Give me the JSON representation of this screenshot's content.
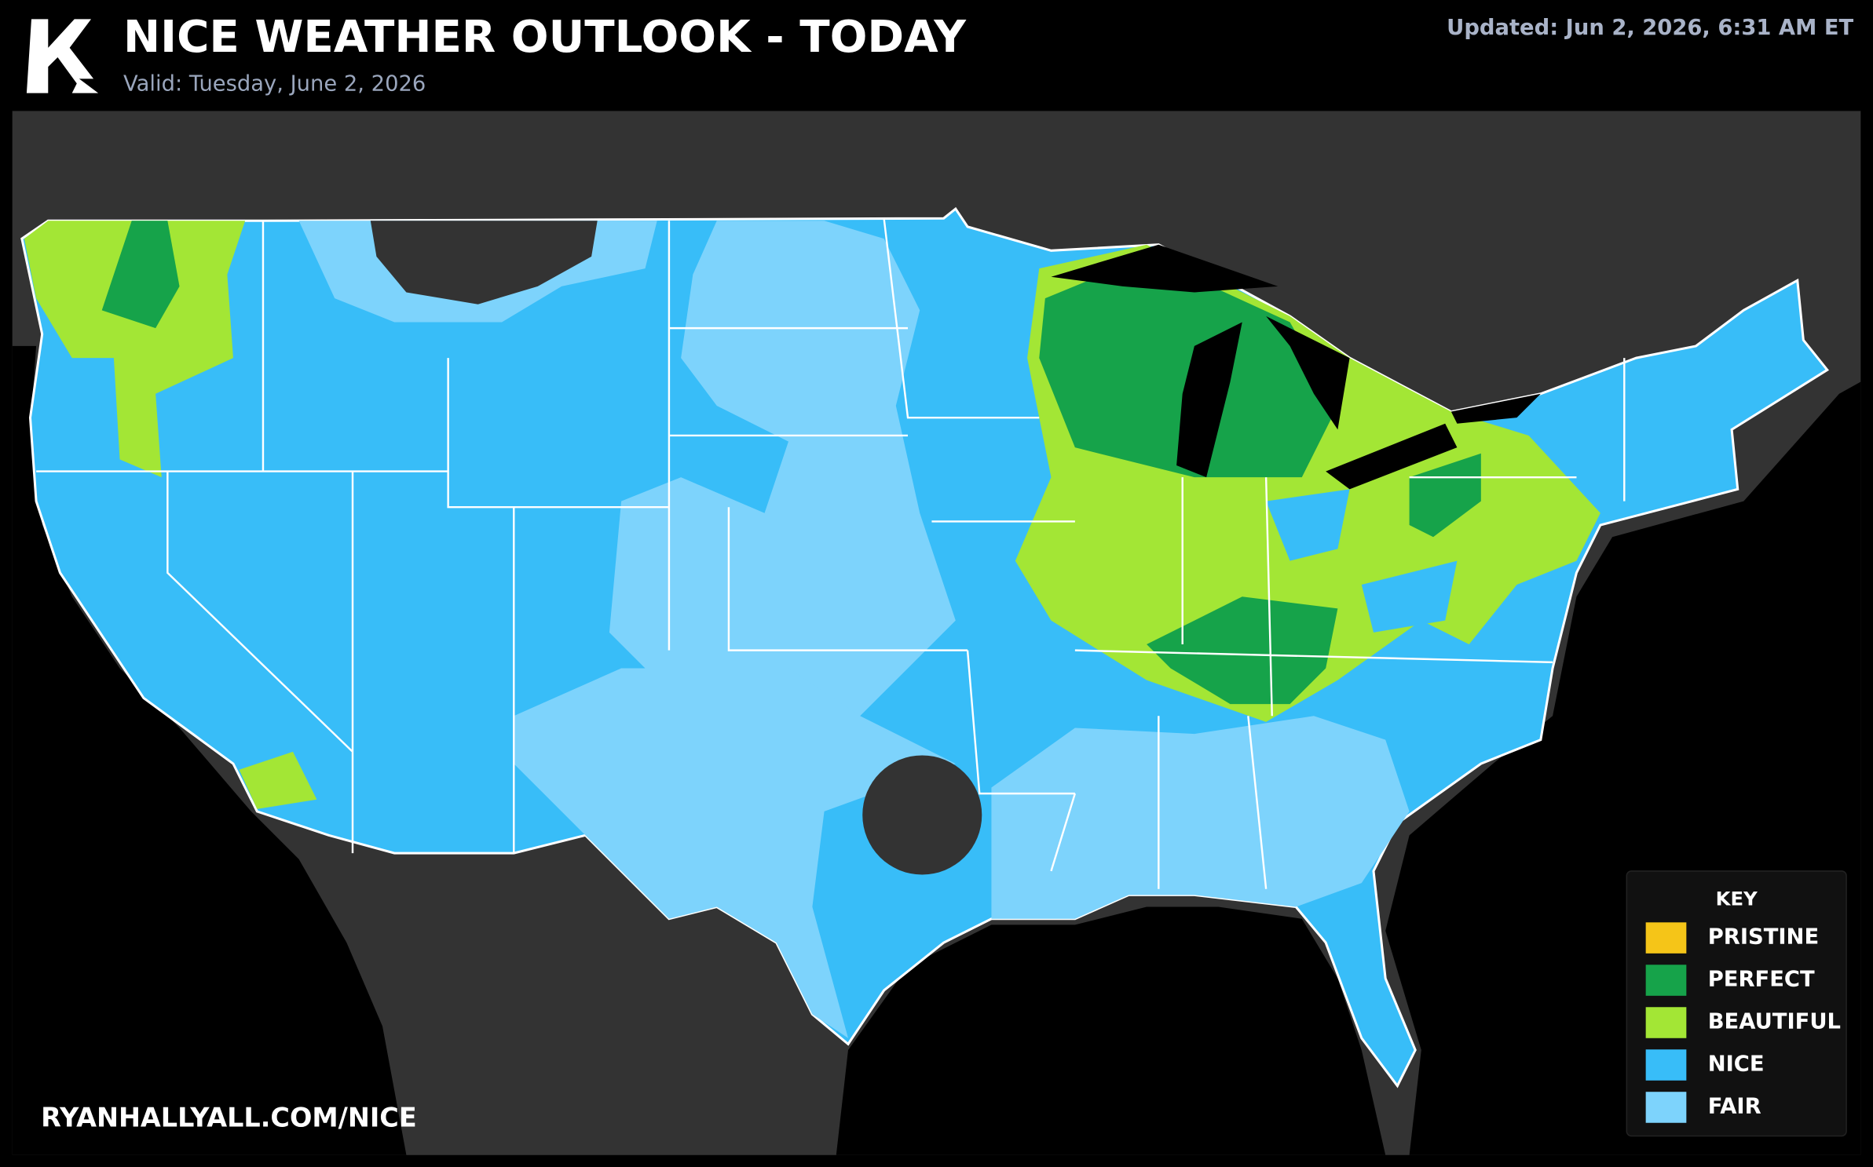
{
  "header": {
    "title": "NICE WEATHER OUTLOOK - TODAY",
    "subtitle": "Valid: Tuesday, June 2, 2026",
    "updated": "Updated: Jun 2, 2026, 6:31 AM ET"
  },
  "legend": {
    "title": "KEY",
    "items": [
      {
        "label": "PRISTINE",
        "color": "#f5c518"
      },
      {
        "label": "PERFECT",
        "color": "#16a34a"
      },
      {
        "label": "BEAUTIFUL",
        "color": "#a3e635"
      },
      {
        "label": "NICE",
        "color": "#38bdf8"
      },
      {
        "label": "FAIR",
        "color": "#7dd3fc"
      }
    ]
  },
  "footer": {
    "url": "RYANHALLYALL.COM/NICE"
  }
}
